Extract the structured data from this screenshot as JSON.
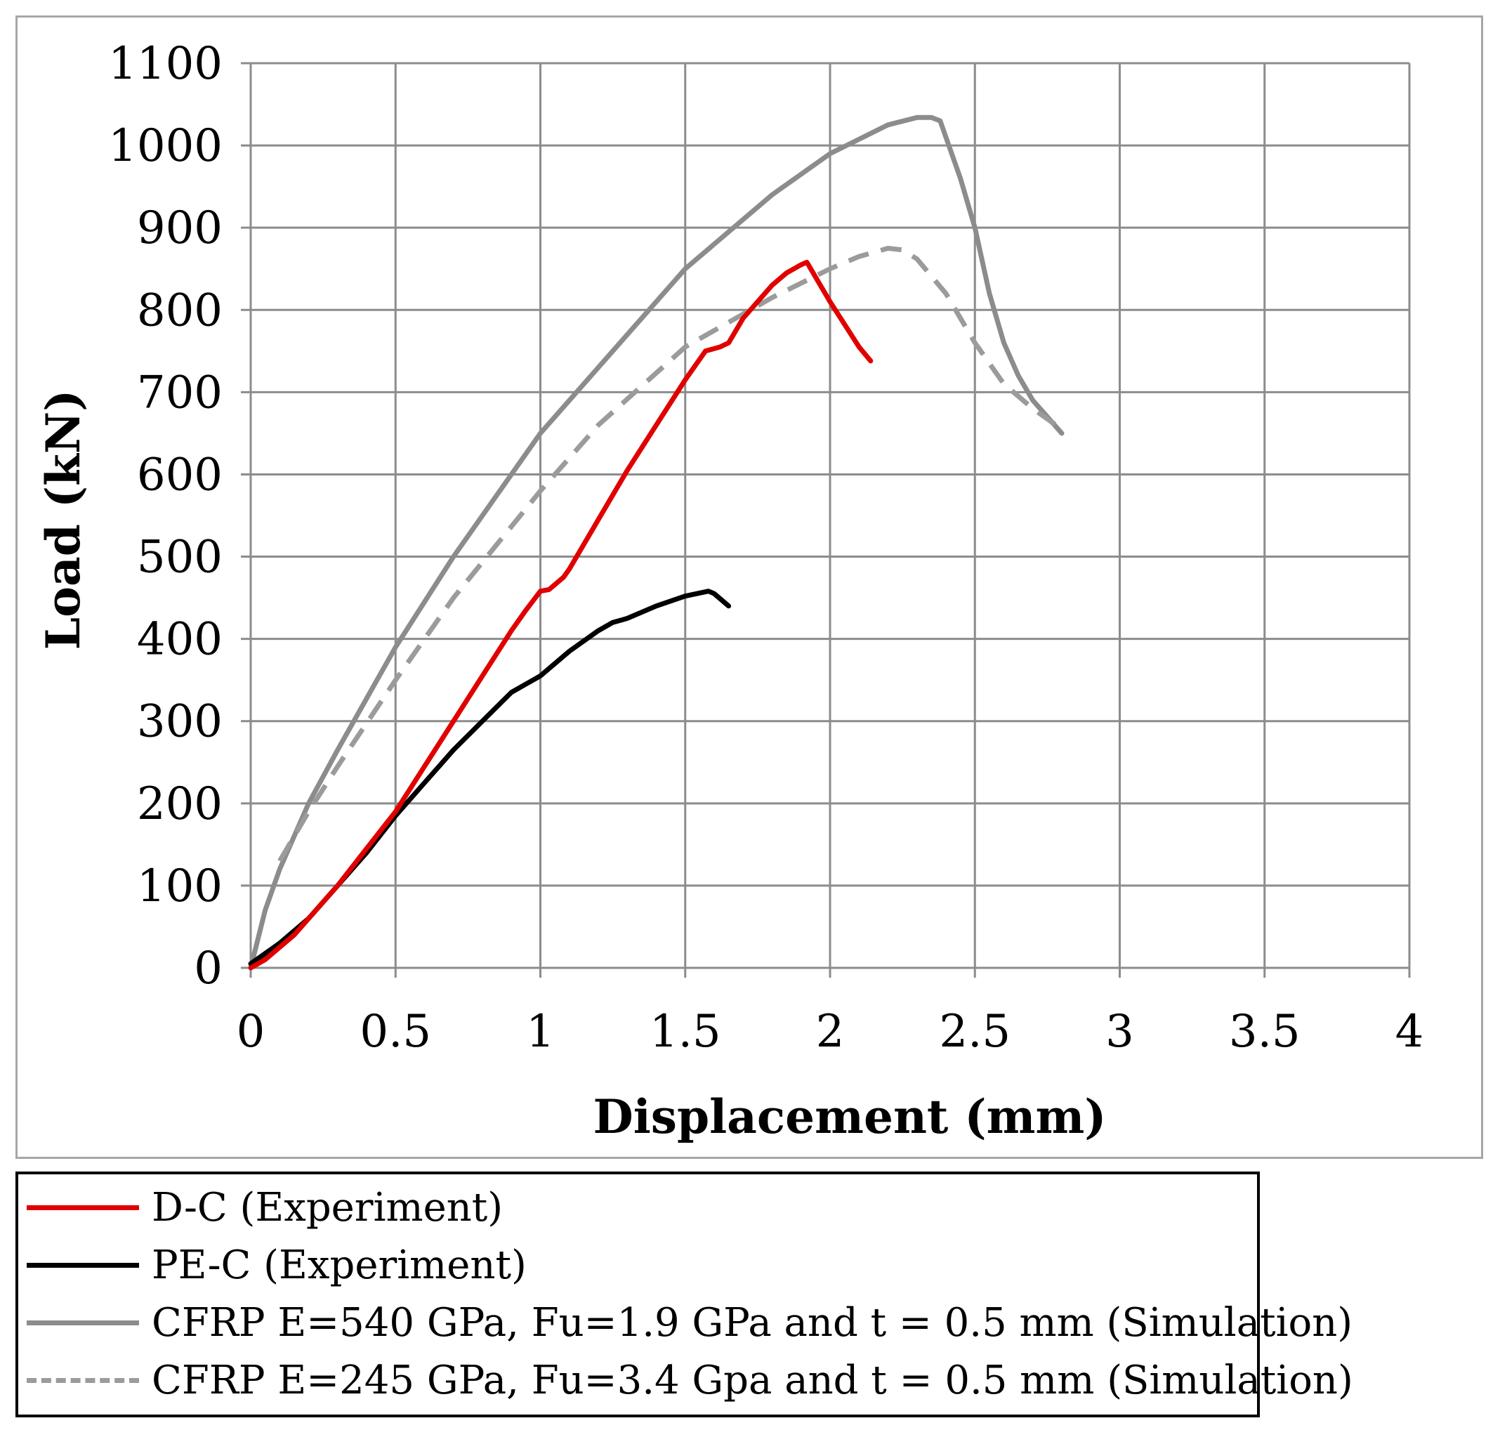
{
  "chart_data": {
    "type": "line",
    "xlabel": "Displacement (mm)",
    "ylabel": "Load (kN)",
    "xlim": [
      0,
      4
    ],
    "ylim": [
      0,
      1100
    ],
    "xticks": [
      0,
      0.5,
      1,
      1.5,
      2,
      2.5,
      3,
      3.5,
      4
    ],
    "xtick_labels": [
      "0",
      "0.5",
      "1",
      "1.5",
      "2",
      "2.5",
      "3",
      "3.5",
      "4"
    ],
    "yticks": [
      0,
      100,
      200,
      300,
      400,
      500,
      600,
      700,
      800,
      900,
      1000,
      1100
    ],
    "ytick_labels": [
      "0",
      "100",
      "200",
      "300",
      "400",
      "500",
      "600",
      "700",
      "800",
      "900",
      "1000",
      "1100"
    ],
    "grid": true,
    "legend_position": "below",
    "series": [
      {
        "name": "D-C (Experiment)",
        "color": "#e00000",
        "dash": "solid",
        "x": [
          0,
          0.05,
          0.1,
          0.15,
          0.2,
          0.3,
          0.4,
          0.5,
          0.6,
          0.7,
          0.8,
          0.9,
          0.95,
          1.0,
          1.03,
          1.08,
          1.1,
          1.2,
          1.3,
          1.4,
          1.5,
          1.57,
          1.62,
          1.65,
          1.7,
          1.8,
          1.85,
          1.9,
          1.92,
          2.0,
          2.1,
          2.14
        ],
        "y": [
          0,
          10,
          25,
          40,
          60,
          100,
          145,
          190,
          245,
          300,
          355,
          410,
          435,
          458,
          460,
          475,
          485,
          545,
          605,
          660,
          715,
          750,
          755,
          760,
          790,
          830,
          845,
          855,
          858,
          810,
          755,
          738
        ]
      },
      {
        "name": "PE-C (Experiment)",
        "color": "#000000",
        "dash": "solid",
        "x": [
          0,
          0.1,
          0.2,
          0.3,
          0.4,
          0.5,
          0.6,
          0.7,
          0.8,
          0.9,
          0.95,
          1.0,
          1.1,
          1.2,
          1.25,
          1.3,
          1.4,
          1.5,
          1.58,
          1.6,
          1.65
        ],
        "y": [
          5,
          30,
          60,
          100,
          140,
          185,
          225,
          265,
          300,
          335,
          345,
          355,
          385,
          410,
          420,
          425,
          440,
          452,
          458,
          455,
          440
        ]
      },
      {
        "name": "CFRP E=540 GPa, Fu=1.9 GPa and t = 0.5 mm (Simulation)",
        "color": "#8c8c8c",
        "dash": "solid",
        "x": [
          0,
          0.05,
          0.1,
          0.2,
          0.3,
          0.5,
          0.7,
          1.0,
          1.2,
          1.5,
          1.8,
          2.0,
          2.2,
          2.3,
          2.35,
          2.38,
          2.4,
          2.45,
          2.5,
          2.55,
          2.6,
          2.65,
          2.7,
          2.75,
          2.8
        ],
        "y": [
          0,
          70,
          120,
          200,
          265,
          390,
          500,
          650,
          730,
          850,
          940,
          990,
          1025,
          1034,
          1034,
          1030,
          1010,
          960,
          900,
          820,
          760,
          720,
          690,
          670,
          650
        ]
      },
      {
        "name": "CFRP E=245 GPa, Fu=3.4 Gpa and t = 0.5 mm (Simulation)",
        "color": "#9b9b9b",
        "dash": "dashed",
        "x": [
          0.1,
          0.2,
          0.3,
          0.5,
          0.7,
          1.0,
          1.2,
          1.5,
          1.8,
          2.0,
          2.1,
          2.2,
          2.25,
          2.3,
          2.4,
          2.5,
          2.6,
          2.7,
          2.8
        ],
        "y": [
          130,
          190,
          245,
          350,
          450,
          580,
          660,
          755,
          815,
          850,
          865,
          875,
          873,
          862,
          820,
          760,
          710,
          680,
          655
        ]
      }
    ]
  }
}
